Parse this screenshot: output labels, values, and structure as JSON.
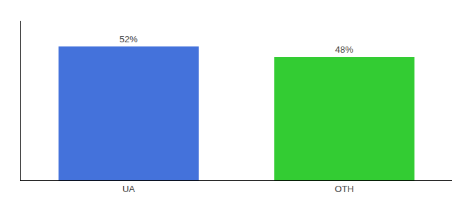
{
  "chart_data": {
    "type": "bar",
    "categories": [
      "UA",
      "OTH"
    ],
    "values": [
      52,
      48
    ],
    "value_labels": [
      "52%",
      "48%"
    ],
    "colors": [
      "#4472DB",
      "#33CC33"
    ],
    "ylim": [
      0,
      62
    ],
    "data_labels": true,
    "tick_labels": "x",
    "grid": false
  }
}
